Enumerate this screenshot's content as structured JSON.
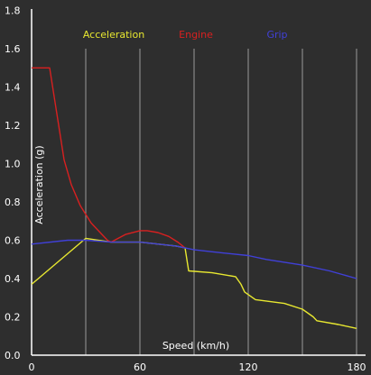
{
  "chart_data": {
    "type": "line",
    "title": "",
    "xlabel": "Speed (km/h)",
    "ylabel": "Acceleration (g)",
    "xlim": [
      0,
      180
    ],
    "ylim": [
      0,
      1.9
    ],
    "x_tick_labels": [
      {
        "value": 0,
        "label": "0"
      },
      {
        "value": 60,
        "label": "60"
      },
      {
        "value": 120,
        "label": "120"
      },
      {
        "value": 180,
        "label": "180"
      }
    ],
    "y_tick_labels": [
      {
        "value": 0.0,
        "label": "0.0"
      },
      {
        "value": 0.2,
        "label": "0.2"
      },
      {
        "value": 0.4,
        "label": "0.4"
      },
      {
        "value": 0.6,
        "label": "0.6"
      },
      {
        "value": 0.8,
        "label": "0.8"
      },
      {
        "value": 1.0,
        "label": "1.0"
      },
      {
        "value": 1.2,
        "label": "1.2"
      },
      {
        "value": 1.4,
        "label": "1.4"
      },
      {
        "value": 1.6,
        "label": "1.6"
      },
      {
        "value": 1.8,
        "label": "1.8"
      }
    ],
    "x_gridlines": [
      30,
      60,
      90,
      120,
      150,
      180
    ],
    "y_gridlines": [],
    "grid": true,
    "legend_position": "top",
    "background_color": "#2e2e2e",
    "axis_color": "#ffffff",
    "grid_color": "#9a9a9a",
    "series": [
      {
        "name": "Acceleration",
        "color": "#e8e830",
        "points": [
          [
            0,
            0.37
          ],
          [
            30,
            0.61
          ],
          [
            44,
            0.59
          ],
          [
            60,
            0.59
          ],
          [
            80,
            0.57
          ],
          [
            85,
            0.56
          ],
          [
            87,
            0.44
          ],
          [
            100,
            0.43
          ],
          [
            113,
            0.41
          ],
          [
            116,
            0.37
          ],
          [
            118,
            0.33
          ],
          [
            124,
            0.29
          ],
          [
            140,
            0.27
          ],
          [
            150,
            0.24
          ],
          [
            156,
            0.2
          ],
          [
            158,
            0.18
          ],
          [
            170,
            0.16
          ],
          [
            180,
            0.14
          ]
        ]
      },
      {
        "name": "Engine",
        "color": "#d82020",
        "points": [
          [
            0,
            1.5
          ],
          [
            10,
            1.5
          ],
          [
            12,
            1.38
          ],
          [
            15,
            1.2
          ],
          [
            18,
            1.02
          ],
          [
            22,
            0.89
          ],
          [
            27,
            0.78
          ],
          [
            33,
            0.69
          ],
          [
            38,
            0.64
          ],
          [
            42,
            0.6
          ],
          [
            44,
            0.59
          ],
          [
            52,
            0.63
          ],
          [
            60,
            0.65
          ],
          [
            64,
            0.65
          ],
          [
            70,
            0.64
          ],
          [
            76,
            0.62
          ],
          [
            81,
            0.59
          ],
          [
            85,
            0.56
          ]
        ]
      },
      {
        "name": "Grip",
        "color": "#4040d8",
        "points": [
          [
            0,
            0.58
          ],
          [
            20,
            0.6
          ],
          [
            30,
            0.6
          ],
          [
            44,
            0.59
          ],
          [
            60,
            0.59
          ],
          [
            80,
            0.57
          ],
          [
            90,
            0.55
          ],
          [
            100,
            0.54
          ],
          [
            120,
            0.52
          ],
          [
            130,
            0.5
          ],
          [
            150,
            0.47
          ],
          [
            165,
            0.44
          ],
          [
            180,
            0.4
          ]
        ]
      }
    ]
  }
}
